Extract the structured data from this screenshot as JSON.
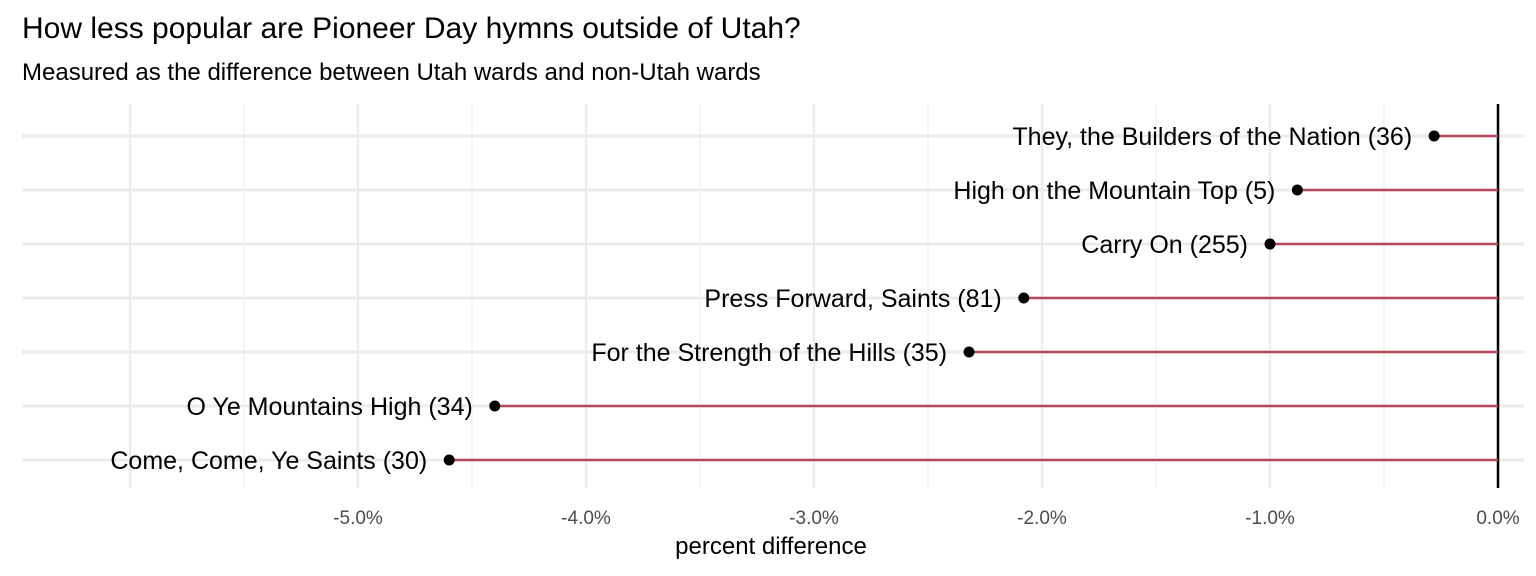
{
  "chart_data": {
    "type": "lollipop",
    "title": "How less popular are Pioneer Day hymns outside of Utah?",
    "subtitle": "Measured as the difference between Utah wards and non-Utah wards",
    "xlabel": "percent difference",
    "ylabel": "",
    "xlim": [
      -6.5,
      0.1
    ],
    "x_ticks": [
      -5.0,
      -4.0,
      -3.0,
      -2.0,
      -1.0,
      0.0
    ],
    "x_tick_labels": [
      "-5.0%",
      "-4.0%",
      "-3.0%",
      "-2.0%",
      "-1.0%",
      "0.0%"
    ],
    "grid": true,
    "legend": "none",
    "colors": {
      "segment": "#b5485d",
      "point": "#000000",
      "zero_line": "#000000",
      "grid": "#ebebeb"
    },
    "points": [
      {
        "label": "They, the Builders of the Nation (36)",
        "value": -0.28
      },
      {
        "label": "High on the Mountain Top (5)",
        "value": -0.88
      },
      {
        "label": "Carry On (255)",
        "value": -1.0
      },
      {
        "label": "Press Forward, Saints (81)",
        "value": -2.08
      },
      {
        "label": "For the Strength of the Hills (35)",
        "value": -2.32
      },
      {
        "label": "O Ye Mountains High (34)",
        "value": -4.4
      },
      {
        "label": "Come, Come, Ye Saints (30)",
        "value": -4.6
      }
    ]
  }
}
